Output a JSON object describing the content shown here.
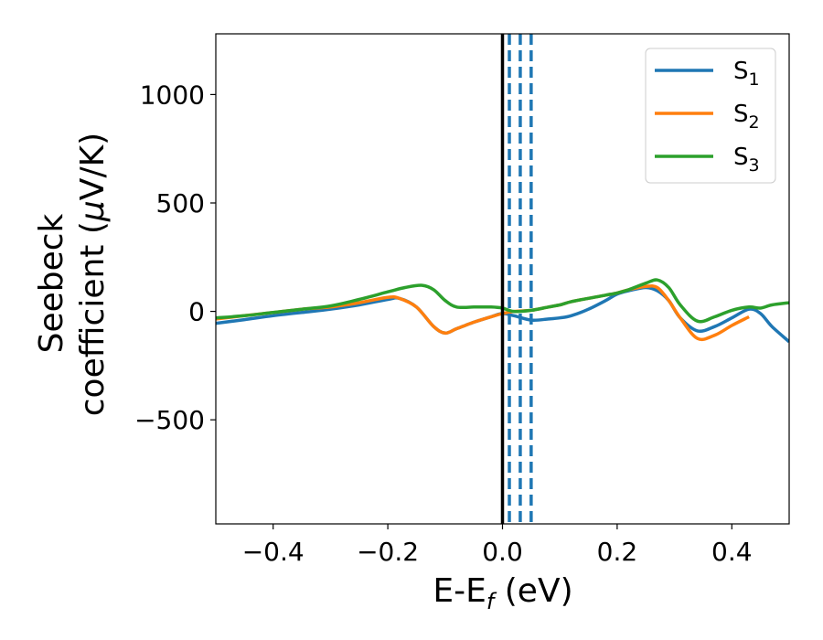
{
  "chart_data": {
    "type": "line",
    "xlabel": {
      "base": "E-E",
      "sub": "f",
      "suffix": " (eV)"
    },
    "ylabel": {
      "line1": "Seebeck",
      "line2_prefix": "coefficient  (",
      "mu": "μ",
      "line2_suffix": "V/K)"
    },
    "xlim": [
      -0.5,
      0.5
    ],
    "ylim": [
      -980,
      1280
    ],
    "x_ticks": [
      -0.4,
      -0.2,
      0.0,
      0.2,
      0.4
    ],
    "x_tick_labels": [
      "−0.4",
      "−0.2",
      "0.0",
      "0.2",
      "0.4"
    ],
    "y_ticks": [
      -500,
      0,
      500,
      1000
    ],
    "y_tick_labels": [
      "−500",
      "0",
      "500",
      "1000"
    ],
    "grid": false,
    "legend_position": "top-right",
    "vertical_lines": {
      "solid": {
        "x": 0.0,
        "color": "#000000"
      },
      "dashed": {
        "x": [
          0.012,
          0.031,
          0.05
        ],
        "color": "#1f77b4"
      }
    },
    "series": [
      {
        "name": "S",
        "sub": "1",
        "color": "#1f77b4",
        "x": [
          -0.5,
          -0.45,
          -0.4,
          -0.35,
          -0.3,
          -0.25,
          -0.2,
          -0.18,
          -0.15,
          -0.12,
          -0.1,
          -0.08,
          -0.05,
          -0.02,
          0.0,
          0.02,
          0.05,
          0.08,
          0.1,
          0.12,
          0.15,
          0.18,
          0.2,
          0.22,
          0.25,
          0.27,
          0.29,
          0.31,
          0.34,
          0.37,
          0.4,
          0.43,
          0.45,
          0.47,
          0.5
        ],
        "y": [
          -55,
          -38,
          -20,
          -5,
          10,
          30,
          55,
          60,
          20,
          -70,
          -100,
          -80,
          -50,
          -25,
          -10,
          -20,
          -40,
          -35,
          -30,
          -20,
          10,
          50,
          80,
          95,
          110,
          95,
          50,
          -30,
          -90,
          -70,
          -30,
          10,
          -10,
          -70,
          -140
        ]
      },
      {
        "name": "S",
        "sub": "2",
        "color": "#ff7f0e",
        "x": [
          -0.5,
          -0.45,
          -0.4,
          -0.35,
          -0.3,
          -0.25,
          -0.2,
          -0.18,
          -0.15,
          -0.12,
          -0.1,
          -0.08,
          -0.05,
          -0.02,
          0.0,
          0.02,
          0.05,
          0.08,
          0.1,
          0.12,
          0.15,
          0.18,
          0.2,
          0.22,
          0.25,
          0.27,
          0.29,
          0.31,
          0.34,
          0.37,
          0.4,
          0.43
        ],
        "y": [
          -35,
          -20,
          -5,
          10,
          20,
          40,
          65,
          60,
          20,
          -70,
          -100,
          -80,
          -50,
          -25,
          -10,
          0,
          5,
          20,
          30,
          45,
          60,
          75,
          85,
          100,
          115,
          110,
          50,
          -30,
          -125,
          -110,
          -65,
          -25
        ]
      },
      {
        "name": "S",
        "sub": "3",
        "color": "#2ca02c",
        "x": [
          -0.5,
          -0.45,
          -0.4,
          -0.35,
          -0.3,
          -0.25,
          -0.2,
          -0.17,
          -0.14,
          -0.12,
          -0.1,
          -0.08,
          -0.05,
          -0.02,
          0.0,
          0.02,
          0.05,
          0.08,
          0.1,
          0.12,
          0.15,
          0.18,
          0.2,
          0.22,
          0.25,
          0.27,
          0.29,
          0.31,
          0.34,
          0.37,
          0.4,
          0.43,
          0.45,
          0.47,
          0.5
        ],
        "y": [
          -30,
          -20,
          -5,
          10,
          25,
          55,
          90,
          110,
          120,
          100,
          50,
          20,
          20,
          20,
          15,
          0,
          5,
          20,
          30,
          45,
          60,
          75,
          85,
          100,
          130,
          145,
          110,
          30,
          -45,
          -25,
          5,
          20,
          15,
          30,
          40
        ]
      }
    ]
  }
}
